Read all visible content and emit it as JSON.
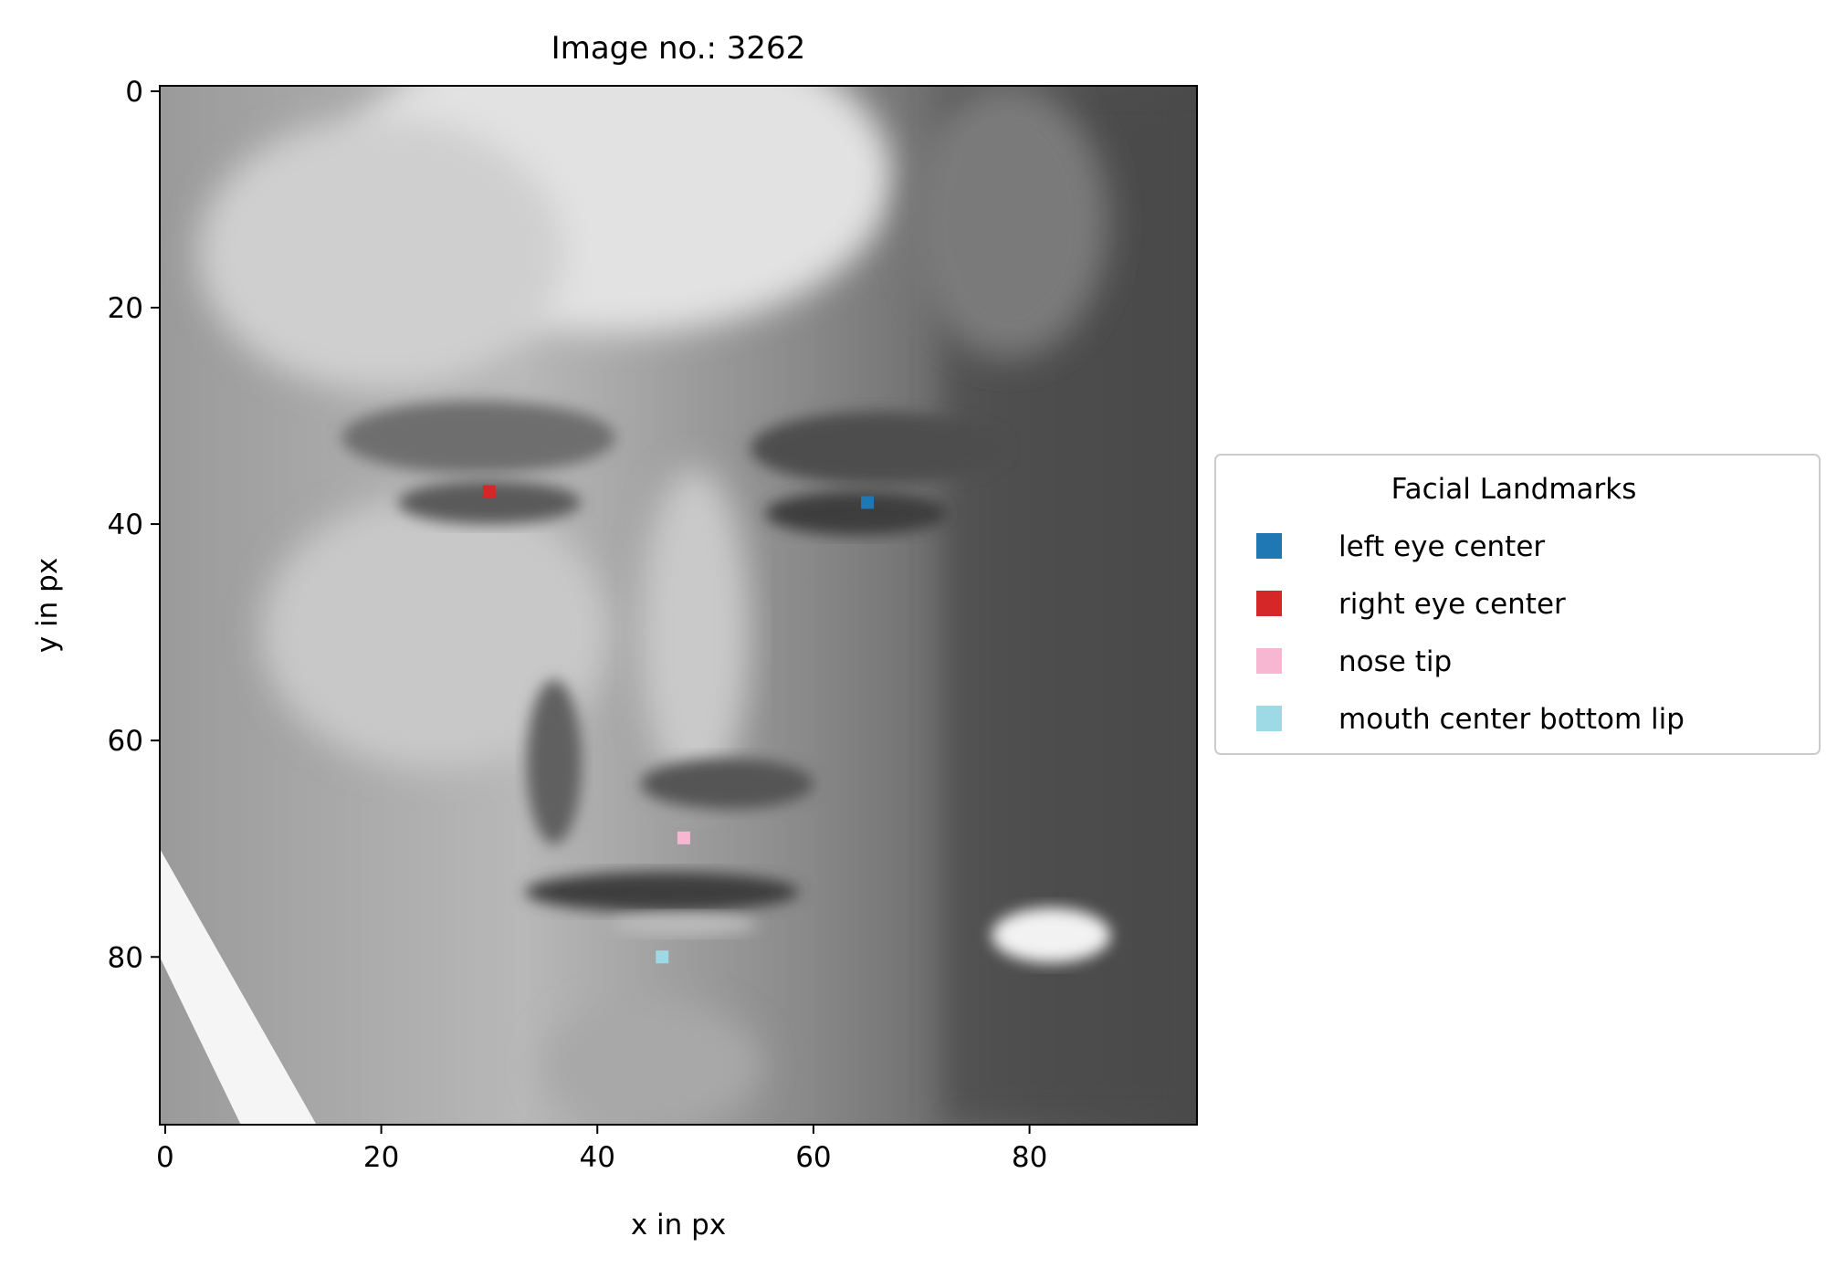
{
  "chart_data": {
    "type": "scatter",
    "title": "Image no.: 3262",
    "xlabel": "x in px",
    "ylabel": "y in px",
    "image": {
      "description_colormap": "gray",
      "width": 96,
      "height": 96
    },
    "xlim": [
      -0.5,
      95.5
    ],
    "ylim": [
      95.5,
      -0.5
    ],
    "y_axis_inverted": true,
    "xticks": [
      0,
      20,
      40,
      60,
      80
    ],
    "yticks": [
      0,
      20,
      40,
      60,
      80
    ],
    "grid": false,
    "legend": {
      "title": "Facial Landmarks",
      "placement": "center-left outside right of axes"
    },
    "series": [
      {
        "name": "left eye center",
        "color": "#1f77b4",
        "points": [
          {
            "x": 65,
            "y": 38
          }
        ]
      },
      {
        "name": "right eye center",
        "color": "#d62728",
        "points": [
          {
            "x": 30,
            "y": 37
          }
        ]
      },
      {
        "name": "nose tip",
        "color": "#f7b6d2",
        "points": [
          {
            "x": 48,
            "y": 69
          }
        ]
      },
      {
        "name": "mouth center bottom lip",
        "color": "#9edae5",
        "points": [
          {
            "x": 46,
            "y": 80
          }
        ]
      }
    ]
  }
}
